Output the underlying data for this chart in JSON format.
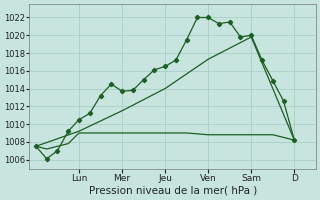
{
  "background_color": "#c8e4df",
  "grid_color": "#a8cfc8",
  "line_color": "#1a6020",
  "marker_color": "#1a6020",
  "xlabel": "Pression niveau de la mer( hPa )",
  "xlabel_fontsize": 7.5,
  "ylim": [
    1005.0,
    1023.5
  ],
  "yticks": [
    1006,
    1008,
    1010,
    1012,
    1014,
    1016,
    1018,
    1020,
    1022
  ],
  "ytick_fontsize": 6,
  "xtick_fontsize": 6.5,
  "day_labels": [
    "Lun",
    "Mer",
    "Jeu",
    "Ven",
    "Sam",
    "D"
  ],
  "day_positions": [
    2,
    4,
    6,
    8,
    10,
    12
  ],
  "xlim": [
    -0.3,
    13.0
  ],
  "line1_x": [
    0,
    0.5,
    1,
    1.5,
    2,
    2.5,
    3,
    3.5,
    4,
    4.5,
    5,
    5.5,
    6,
    6.5,
    7,
    7.5,
    8,
    8.5,
    9,
    9.5,
    10,
    10.5,
    11,
    11.5,
    12
  ],
  "line1_y": [
    1007.5,
    1006.1,
    1007.0,
    1009.2,
    1010.5,
    1011.2,
    1013.2,
    1014.5,
    1013.7,
    1013.8,
    1015.0,
    1016.1,
    1016.5,
    1017.2,
    1019.5,
    1022.0,
    1022.0,
    1021.3,
    1021.5,
    1019.8,
    1020.0,
    1017.2,
    1014.9,
    1012.6,
    1008.2
  ],
  "line2_x": [
    0,
    0.5,
    1.5,
    2.0,
    3.0,
    4.0,
    5.0,
    6.0,
    7.0,
    8.0,
    9.0,
    10.0,
    11.0,
    12.0
  ],
  "line2_y": [
    1007.5,
    1007.2,
    1007.8,
    1009.0,
    1009.0,
    1009.0,
    1009.0,
    1009.0,
    1009.0,
    1008.8,
    1008.8,
    1008.8,
    1008.8,
    1008.2
  ],
  "line3_x": [
    0,
    2,
    4,
    6,
    8,
    10,
    12
  ],
  "line3_y": [
    1007.5,
    1009.2,
    1011.5,
    1014.0,
    1017.3,
    1019.8,
    1008.2
  ]
}
